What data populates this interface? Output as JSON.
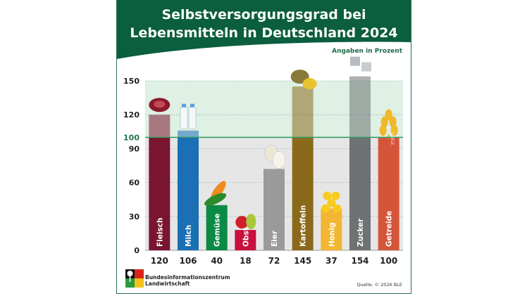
{
  "title_line1": "Selbstversorgungsgrad bei",
  "title_line2": "Lebensmitteln in Deutschland 2024",
  "unit_note": "Angaben in Prozent",
  "copyright_mark": "© BLE",
  "organization_line1": "Bundesinformationszentrum",
  "organization_line2": "Landwirtschaft",
  "source": "Quelle: © 2026 BLE",
  "colors": {
    "header": "#0b5e3e",
    "self_sufficiency_line": "#2e9a5e",
    "above_100_zone": "#dff0e4",
    "below_100_zone": "#e6e6e6"
  },
  "chart_data": {
    "type": "bar",
    "title": "Selbstversorgungsgrad bei Lebensmitteln in Deutschland 2024",
    "ylabel": "Angaben in Prozent",
    "ylim": [
      0,
      150
    ],
    "yticks": [
      0,
      30,
      60,
      90,
      100,
      120,
      150
    ],
    "reference_line": 100,
    "grid": true,
    "categories": [
      "Fleisch",
      "Milch",
      "Gemüse",
      "Obst",
      "Eier",
      "Kartoffeln",
      "Honig",
      "Zucker",
      "Getreide"
    ],
    "values": [
      120,
      106,
      40,
      18,
      72,
      145,
      37,
      154,
      100
    ],
    "bar_colors": [
      "#7a1530",
      "#1a6fb5",
      "#0a8a45",
      "#c8103c",
      "#9a9a9a",
      "#8a6a1a",
      "#f2b632",
      "#6e7273",
      "#d4553a"
    ],
    "icons": [
      "meat-icon",
      "milk-bottles-icon",
      "cucumber-carrot-icon",
      "apple-pear-icon",
      "eggs-icon",
      "potatoes-icon",
      "honey-icon",
      "sugar-cubes-icon",
      "wheat-icon"
    ]
  }
}
